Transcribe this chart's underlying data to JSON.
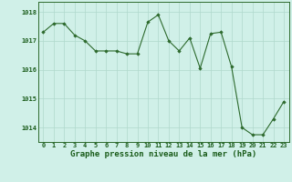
{
  "x": [
    0,
    1,
    2,
    3,
    4,
    5,
    6,
    7,
    8,
    9,
    10,
    11,
    12,
    13,
    14,
    15,
    16,
    17,
    18,
    19,
    20,
    21,
    22,
    23
  ],
  "y": [
    1017.3,
    1017.6,
    1017.6,
    1017.2,
    1017.0,
    1016.65,
    1016.65,
    1016.65,
    1016.55,
    1016.55,
    1017.65,
    1017.9,
    1017.0,
    1016.65,
    1017.1,
    1016.05,
    1017.25,
    1017.3,
    1016.1,
    1014.0,
    1013.75,
    1013.75,
    1014.3,
    1014.9
  ],
  "line_color": "#2d6a2d",
  "marker_color": "#2d6a2d",
  "bg_color": "#d0f0e8",
  "grid_color": "#b0d8cc",
  "title": "Graphe pression niveau de la mer (hPa)",
  "title_color": "#1a5c1a",
  "tick_color": "#1a5c1a",
  "ylim_min": 1013.5,
  "ylim_max": 1018.35,
  "yticks": [
    1014,
    1015,
    1016,
    1017,
    1018
  ],
  "xticks": [
    0,
    1,
    2,
    3,
    4,
    5,
    6,
    7,
    8,
    9,
    10,
    11,
    12,
    13,
    14,
    15,
    16,
    17,
    18,
    19,
    20,
    21,
    22,
    23
  ],
  "tick_label_fontsize": 5.0,
  "title_fontsize": 6.5,
  "border_color": "#2d6a2d",
  "linewidth": 0.8,
  "markersize": 1.8
}
